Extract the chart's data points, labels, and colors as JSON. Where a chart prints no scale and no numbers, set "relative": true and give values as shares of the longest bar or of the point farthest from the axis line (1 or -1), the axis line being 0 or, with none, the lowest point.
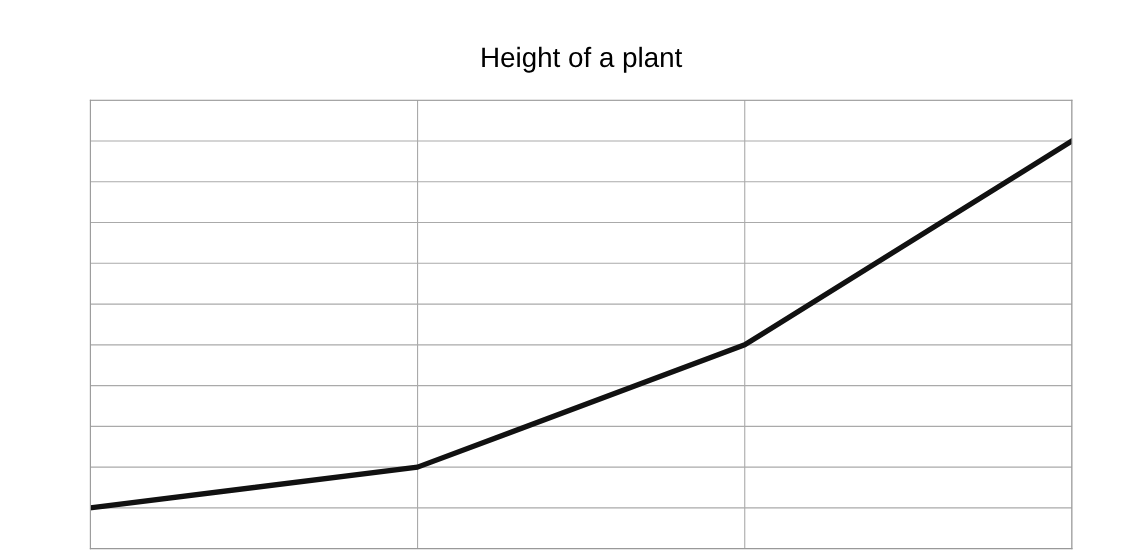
{
  "chart_data": {
    "type": "line",
    "title": "Height of a plant",
    "relative": true,
    "categories": [
      null,
      null,
      null,
      null
    ],
    "series": [
      {
        "color": "#111111",
        "values": [
          0.1,
          0.2,
          0.5,
          1.0
        ]
      }
    ],
    "grid": true,
    "marker": "none",
    "line_style": "solid"
  }
}
